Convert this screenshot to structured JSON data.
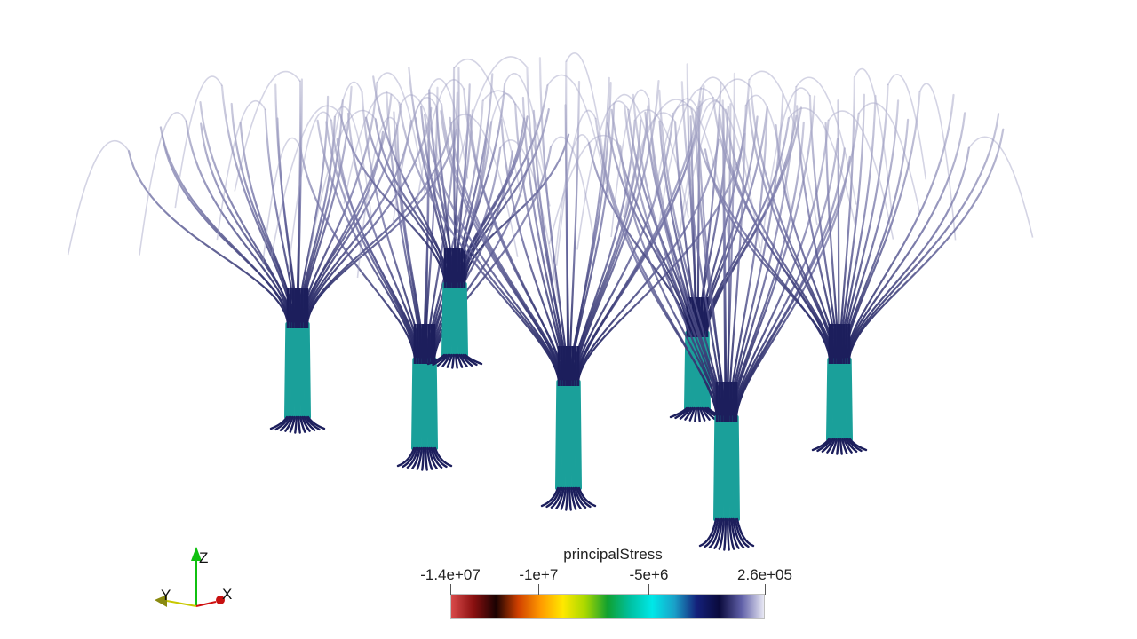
{
  "colorbar": {
    "title": "principalStress",
    "ticks": [
      {
        "label": "-1.4e+07",
        "value": -14000000
      },
      {
        "label": "-1e+7",
        "value": -10000000
      },
      {
        "label": "-5e+6",
        "value": -5000000
      },
      {
        "label": "2.6e+05",
        "value": 260000
      }
    ],
    "range": [
      -14000000,
      260000
    ],
    "colormap": [
      "#d94a4a",
      "#8a1010",
      "#1a0202",
      "#d04000",
      "#ff9a00",
      "#ffe800",
      "#a8d800",
      "#10a030",
      "#00c0a0",
      "#00e8e8",
      "#1aa0c8",
      "#14207a",
      "#0a0a3c",
      "#6060a8",
      "#e8e8f4"
    ]
  },
  "orientation_axes": {
    "x_label": "X",
    "y_label": "Y",
    "z_label": "Z",
    "x_color": "#d01010",
    "y_color": "#c8c800",
    "z_color": "#10c010"
  },
  "scene": {
    "streamline_color": "#1c1e5c",
    "column_color": "#1aa09a",
    "background": "#ffffff"
  }
}
